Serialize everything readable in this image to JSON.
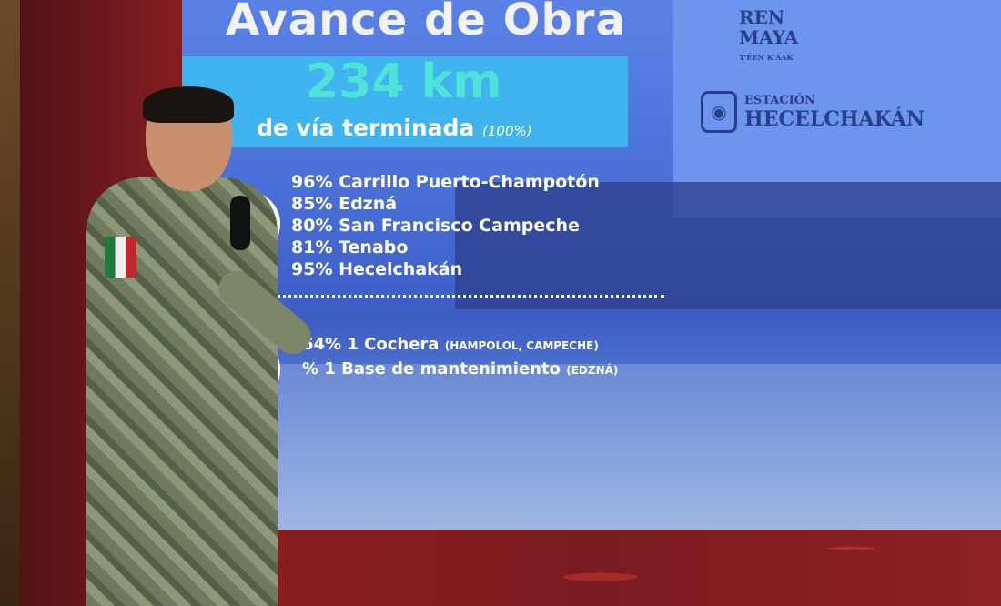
{
  "slide": {
    "title": "Avance de Obra",
    "km": "234 km",
    "subtitle": "de vía terminada",
    "subtitle_pct": "(100%)",
    "logo_tren": [
      "REN",
      "MAYA",
      "T'ÉEN K'ÁAK"
    ],
    "station_small": "ESTACIÓN",
    "station_name": "HECELCHAKÁN",
    "stations": [
      "96% Carrillo Puerto-Champotón",
      "85% Edzná",
      "80% San Francisco Campeche",
      "81% Tenabo",
      "95% Hecelchakán"
    ],
    "facilities": [
      {
        "text": "64% 1 Cochera",
        "note": "(HAMPOLOL, CAMPECHE)"
      },
      {
        "text": "% 1 Base de mantenimiento",
        "note": "(EDZNÁ)"
      }
    ]
  },
  "colors": {
    "screen_blue": "#4a70d8",
    "accent_cyan": "#3fb4ee",
    "km_teal": "#4ee3d8",
    "stage_red": "#8a1f22"
  }
}
